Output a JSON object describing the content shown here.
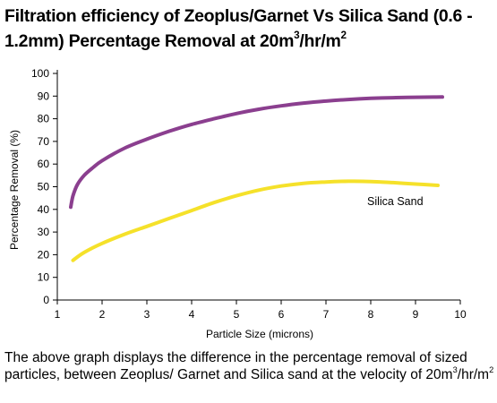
{
  "header": {
    "title_part1": "Filtration efficiency of Zeoplus/Garnet Vs Silica Sand (0.6 - 1.2mm) Percentage Removal at 20m",
    "title_sup1": "3",
    "title_part2": "/hr/m",
    "title_sup2": "2"
  },
  "caption": {
    "part1": "The above graph displays the difference in the percentage removal of sized particles, between Zeoplus/ Garnet and Silica sand at the velocity of 20m",
    "sup1": "3",
    "part2": "/hr/m",
    "sup2": "2"
  },
  "chart_data": {
    "type": "line",
    "xlabel": "Particle Size (microns)",
    "ylabel": "Percentage Removal (%)",
    "xlim": [
      1,
      10
    ],
    "ylim": [
      0,
      100
    ],
    "x_ticks": [
      "1",
      "2",
      "3",
      "4",
      "5",
      "6",
      "7",
      "8",
      "9",
      "10"
    ],
    "y_ticks": [
      "0",
      "10",
      "20",
      "30",
      "40",
      "50",
      "60",
      "70",
      "80",
      "90",
      "100"
    ],
    "grid": false,
    "series": [
      {
        "name": "",
        "color": "#8b3f8f",
        "x": [
          1.3,
          1.35,
          1.45,
          1.6,
          1.8,
          2.0,
          2.5,
          3.0,
          3.5,
          4.0,
          4.5,
          5.0,
          5.5,
          6.0,
          6.5,
          7.0,
          7.5,
          8.0,
          8.5,
          9.0,
          9.6
        ],
        "y": [
          41,
          46,
          51,
          55,
          58.5,
          61.5,
          67,
          71,
          74.5,
          77.5,
          80,
          82.3,
          84.2,
          85.7,
          86.9,
          87.8,
          88.5,
          89.0,
          89.3,
          89.5,
          89.6
        ]
      },
      {
        "name": "Silica Sand",
        "color": "#f5e12a",
        "x": [
          1.35,
          1.6,
          2.0,
          2.5,
          3.0,
          3.5,
          4.0,
          4.5,
          5.0,
          5.5,
          6.0,
          6.5,
          7.0,
          7.5,
          8.0,
          8.5,
          9.0,
          9.5
        ],
        "y": [
          17.5,
          21,
          25,
          29,
          32.5,
          36,
          39.5,
          43,
          46,
          48.5,
          50.3,
          51.5,
          52.1,
          52.4,
          52.3,
          51.8,
          51.2,
          50.6
        ]
      }
    ]
  }
}
